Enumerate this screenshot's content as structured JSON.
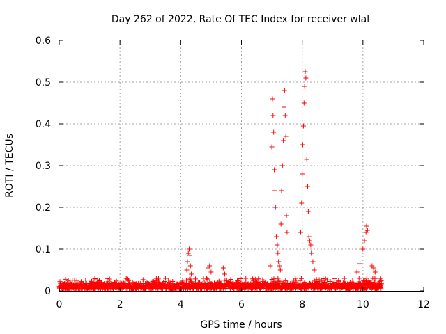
{
  "chart_data": {
    "type": "scatter",
    "title": "Day 262 of 2022, Rate Of TEC Index for receiver wlal",
    "xlabel": "GPS time / hours",
    "ylabel": "ROTI / TECUs",
    "xlim": [
      0,
      12
    ],
    "ylim": [
      0,
      0.6
    ],
    "x_ticks": [
      "0",
      "2",
      "4",
      "6",
      "8",
      "10",
      "12"
    ],
    "y_ticks": [
      "0",
      "0.1",
      "0.2",
      "0.3",
      "0.4",
      "0.5",
      "0.6"
    ],
    "x_tick_values": [
      0,
      2,
      4,
      6,
      8,
      10,
      12
    ],
    "y_tick_values": [
      0,
      0.1,
      0.2,
      0.3,
      0.4,
      0.5,
      0.6
    ],
    "grid": true,
    "marker": "+",
    "color": "#ff0000",
    "series": [
      {
        "name": "ROTI",
        "baseline": {
          "x_start": 0.0,
          "x_end": 10.6,
          "typical": 0.012,
          "max": 0.03
        },
        "x": [
          4.2,
          4.22,
          4.25,
          4.28,
          4.3,
          4.32,
          4.35,
          4.9,
          4.95,
          5.0,
          5.4,
          5.45,
          6.95,
          7.0,
          7.02,
          7.04,
          7.06,
          7.08,
          7.1,
          7.12,
          7.15,
          7.18,
          7.2,
          7.22,
          7.25,
          7.28,
          7.3,
          7.32,
          7.35,
          7.38,
          7.4,
          7.42,
          7.44,
          7.46,
          7.48,
          7.5,
          7.95,
          7.98,
          8.0,
          8.02,
          8.04,
          8.06,
          8.08,
          8.1,
          8.12,
          8.15,
          8.18,
          8.2,
          8.22,
          8.25,
          8.28,
          8.3,
          8.35,
          8.4,
          9.8,
          9.9,
          10.0,
          10.05,
          10.1,
          10.12,
          10.15,
          10.3,
          10.35,
          10.4
        ],
        "y": [
          0.05,
          0.07,
          0.09,
          0.1,
          0.085,
          0.06,
          0.04,
          0.055,
          0.06,
          0.045,
          0.055,
          0.04,
          0.06,
          0.345,
          0.46,
          0.42,
          0.38,
          0.29,
          0.24,
          0.2,
          0.13,
          0.11,
          0.09,
          0.07,
          0.06,
          0.05,
          0.16,
          0.24,
          0.3,
          0.36,
          0.44,
          0.48,
          0.42,
          0.37,
          0.18,
          0.14,
          0.14,
          0.21,
          0.28,
          0.35,
          0.395,
          0.45,
          0.49,
          0.525,
          0.51,
          0.315,
          0.25,
          0.19,
          0.13,
          0.12,
          0.11,
          0.09,
          0.07,
          0.05,
          0.045,
          0.065,
          0.1,
          0.12,
          0.14,
          0.155,
          0.145,
          0.06,
          0.055,
          0.045
        ]
      }
    ]
  }
}
